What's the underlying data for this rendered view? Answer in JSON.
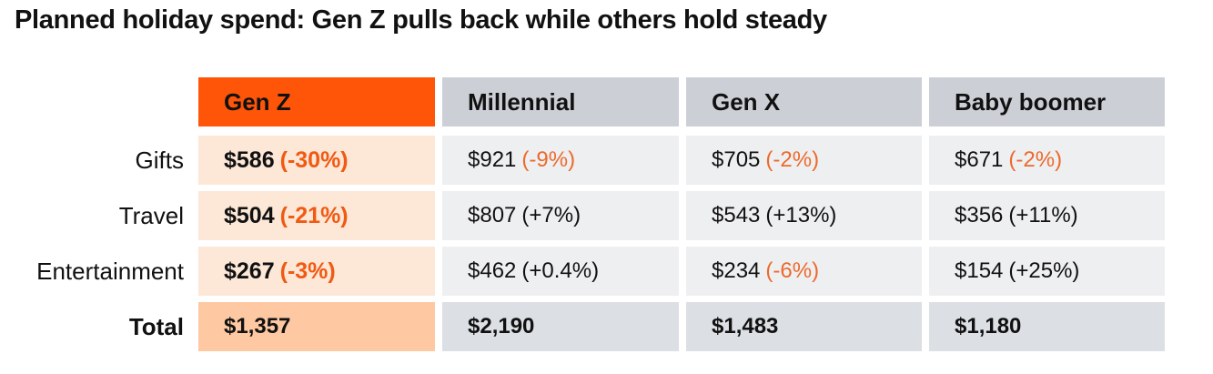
{
  "chart_data": {
    "type": "table",
    "title": "Planned holiday spend: Gen Z pulls back while others hold steady",
    "columns": [
      "Gen Z",
      "Millennial",
      "Gen X",
      "Baby boomer"
    ],
    "rows": [
      {
        "label": "Gifts",
        "cells": [
          {
            "value": "$586",
            "change": "(-30%)",
            "direction": "neg"
          },
          {
            "value": "$921",
            "change": "(-9%)",
            "direction": "neg"
          },
          {
            "value": "$705",
            "change": "(-2%)",
            "direction": "neg"
          },
          {
            "value": "$671",
            "change": "(-2%)",
            "direction": "neg"
          }
        ]
      },
      {
        "label": "Travel",
        "cells": [
          {
            "value": "$504",
            "change": "(-21%)",
            "direction": "neg"
          },
          {
            "value": "$807",
            "change": "(+7%)",
            "direction": "pos"
          },
          {
            "value": "$543",
            "change": "(+13%)",
            "direction": "pos"
          },
          {
            "value": "$356",
            "change": "(+11%)",
            "direction": "pos"
          }
        ]
      },
      {
        "label": "Entertainment",
        "cells": [
          {
            "value": "$267",
            "change": "(-3%)",
            "direction": "neg"
          },
          {
            "value": "$462",
            "change": "(+0.4%)",
            "direction": "pos"
          },
          {
            "value": "$234",
            "change": "(-6%)",
            "direction": "neg"
          },
          {
            "value": "$154",
            "change": "(+25%)",
            "direction": "pos"
          }
        ]
      }
    ],
    "total": {
      "label": "Total",
      "values": [
        "$1,357",
        "$2,190",
        "$1,483",
        "$1,180"
      ]
    },
    "highlight_column": "Gen Z"
  },
  "colors": {
    "highlight_header": "#fe5509",
    "highlight_body": "#fde8d8",
    "highlight_total": "#fdc8a2",
    "other_header": "#ccd0d6",
    "other_body": "#eeeff1",
    "other_total": "#dcdfe3",
    "negative_text": "#ec6a2c"
  }
}
